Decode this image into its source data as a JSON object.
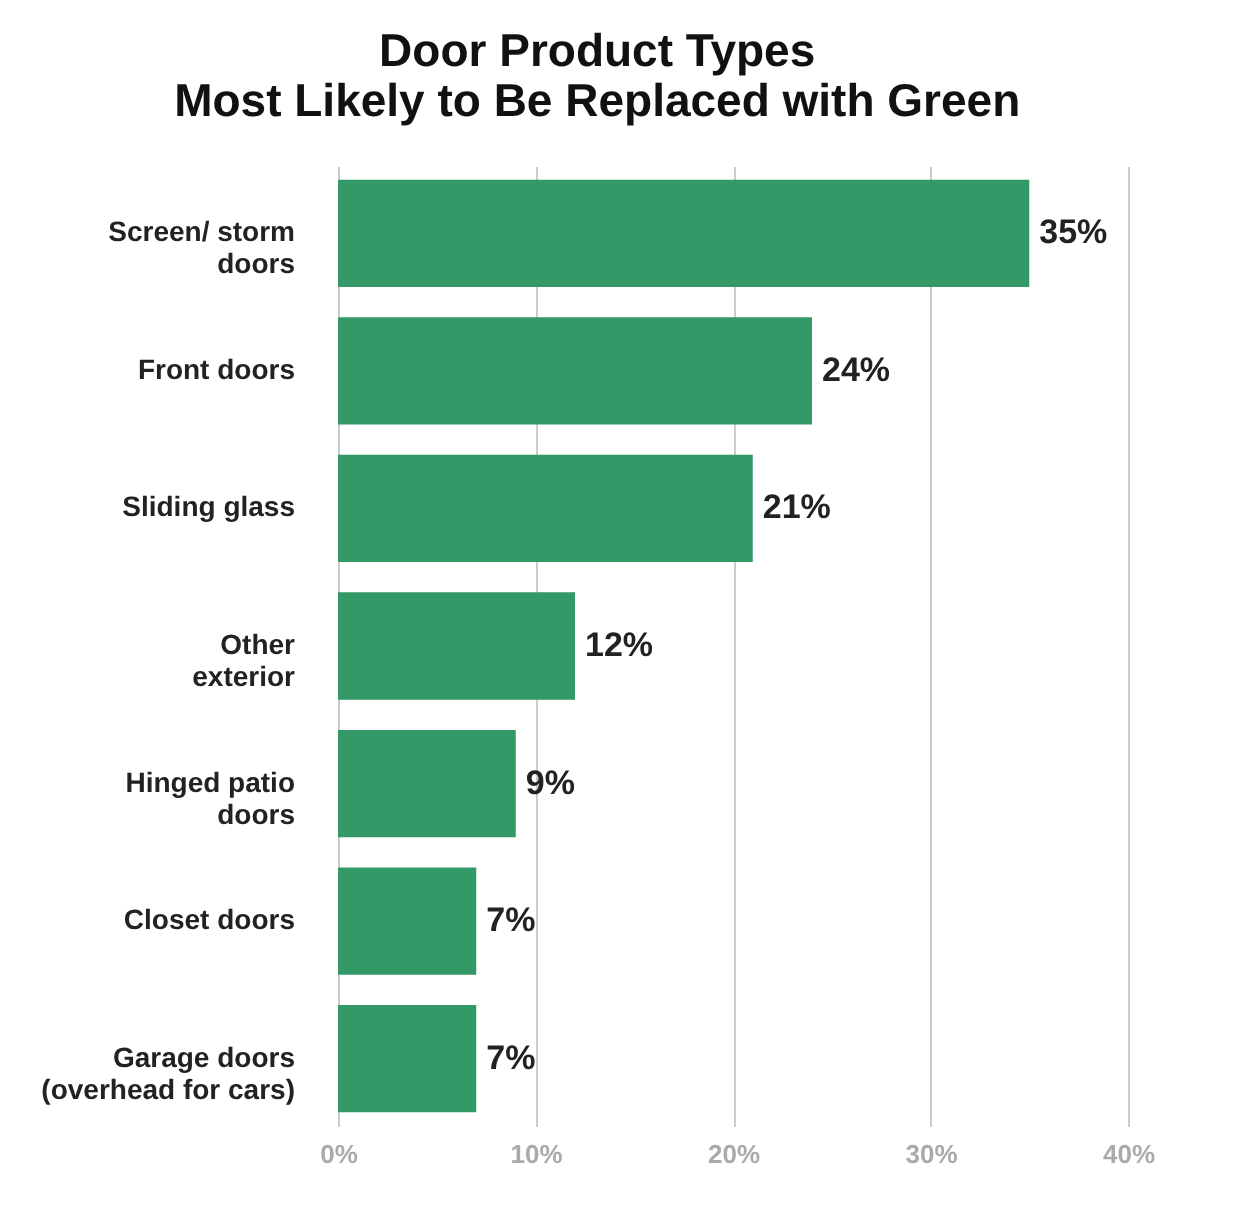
{
  "chart_data": {
    "type": "bar",
    "orientation": "horizontal",
    "title": [
      "Door Product Types",
      "Most Likely to Be Replaced with Green"
    ],
    "categories": [
      "Screen/ storm\ndoors",
      "Front doors",
      "Sliding glass",
      "Other\nexterior",
      "Hinged patio\ndoors",
      "Closet doors",
      "Garage doors\n(overhead for cars)"
    ],
    "values": [
      35,
      24,
      21,
      12,
      9,
      7,
      7
    ],
    "value_labels": [
      "35%",
      "24%",
      "21%",
      "12%",
      "9%",
      "7%",
      "7%"
    ],
    "color": "#339966",
    "xlim": [
      0,
      40
    ],
    "xticks": [
      {
        "value": 0,
        "label": "0%"
      },
      {
        "value": 10,
        "label": "10%"
      },
      {
        "value": 20,
        "label": "20%"
      },
      {
        "value": 30,
        "label": "30%"
      },
      {
        "value": 40,
        "label": "40%"
      }
    ],
    "grid": "x"
  }
}
